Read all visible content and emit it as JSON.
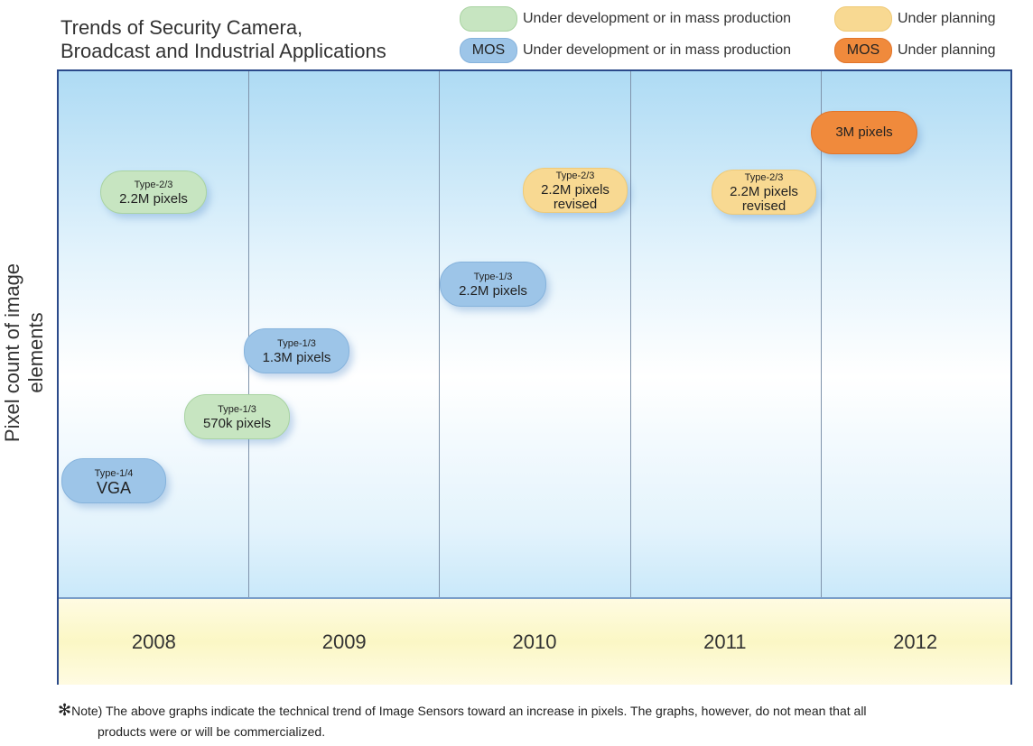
{
  "title_line1": "Trends of Security Camera,",
  "title_line2": "Broadcast and Industrial Applications",
  "legend": [
    {
      "chip": "",
      "label": "Under development or in mass production",
      "color": "#c7e5c1"
    },
    {
      "chip": "",
      "label": "Under planning",
      "color": "#f8d992"
    },
    {
      "chip": "MOS",
      "label": "Under development or in mass production",
      "color": "#9dc5e8"
    },
    {
      "chip": "MOS",
      "label": "Under planning",
      "color": "#f08a3c"
    }
  ],
  "y_axis_label": "Pixel count of image elements",
  "years": [
    "2008",
    "2009",
    "2010",
    "2011",
    "2012"
  ],
  "items": [
    {
      "type": "Type-2/3",
      "value": "2.2M pixels",
      "status": "green"
    },
    {
      "type": "Type-2/3",
      "value": "2.2M pixels",
      "extra": "revised",
      "status": "yellow"
    },
    {
      "type": "Type-2/3",
      "value": "2.2M pixels",
      "extra": "revised",
      "status": "yellow"
    },
    {
      "type": "",
      "value": "3M pixels",
      "status": "orange"
    },
    {
      "type": "Type-1/3",
      "value": "2.2M pixels",
      "status": "blue"
    },
    {
      "type": "Type-1/3",
      "value": "1.3M pixels",
      "status": "blue"
    },
    {
      "type": "Type-1/3",
      "value": "570k pixels",
      "status": "green"
    },
    {
      "type": "Type-1/4",
      "value": "VGA",
      "status": "blue"
    }
  ],
  "note_mark": "✻",
  "note_line1": "Note) The above graphs indicate the technical trend of Image Sensors toward an increase in pixels.  The graphs, however, do not mean that all",
  "note_line2": "products were or will be commercialized."
}
